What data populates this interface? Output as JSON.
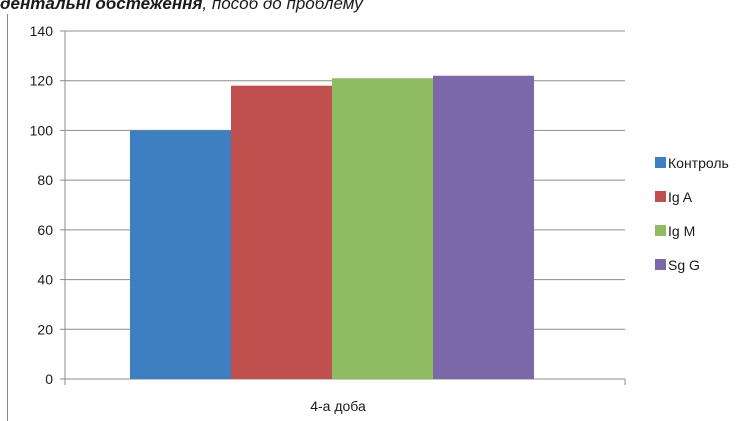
{
  "caption": {
    "bold_part": "дентальні обстеження",
    "italic_part": ", пособ до проблему"
  },
  "chart_data": {
    "type": "bar",
    "categories": [
      "4-а доба"
    ],
    "series": [
      {
        "name": "Контроль",
        "values": [
          100
        ],
        "color": "#3d7fc0"
      },
      {
        "name": "Ig A",
        "values": [
          118
        ],
        "color": "#c0504d"
      },
      {
        "name": "Ig M",
        "values": [
          121
        ],
        "color": "#8fbb63"
      },
      {
        "name": "Sg G",
        "values": [
          122
        ],
        "color": "#7b68a8"
      }
    ],
    "yticks": [
      "0",
      "20",
      "40",
      "60",
      "80",
      "100",
      "120",
      "140"
    ],
    "ylim": [
      0,
      140
    ],
    "grid": true,
    "legend_position": "right"
  }
}
